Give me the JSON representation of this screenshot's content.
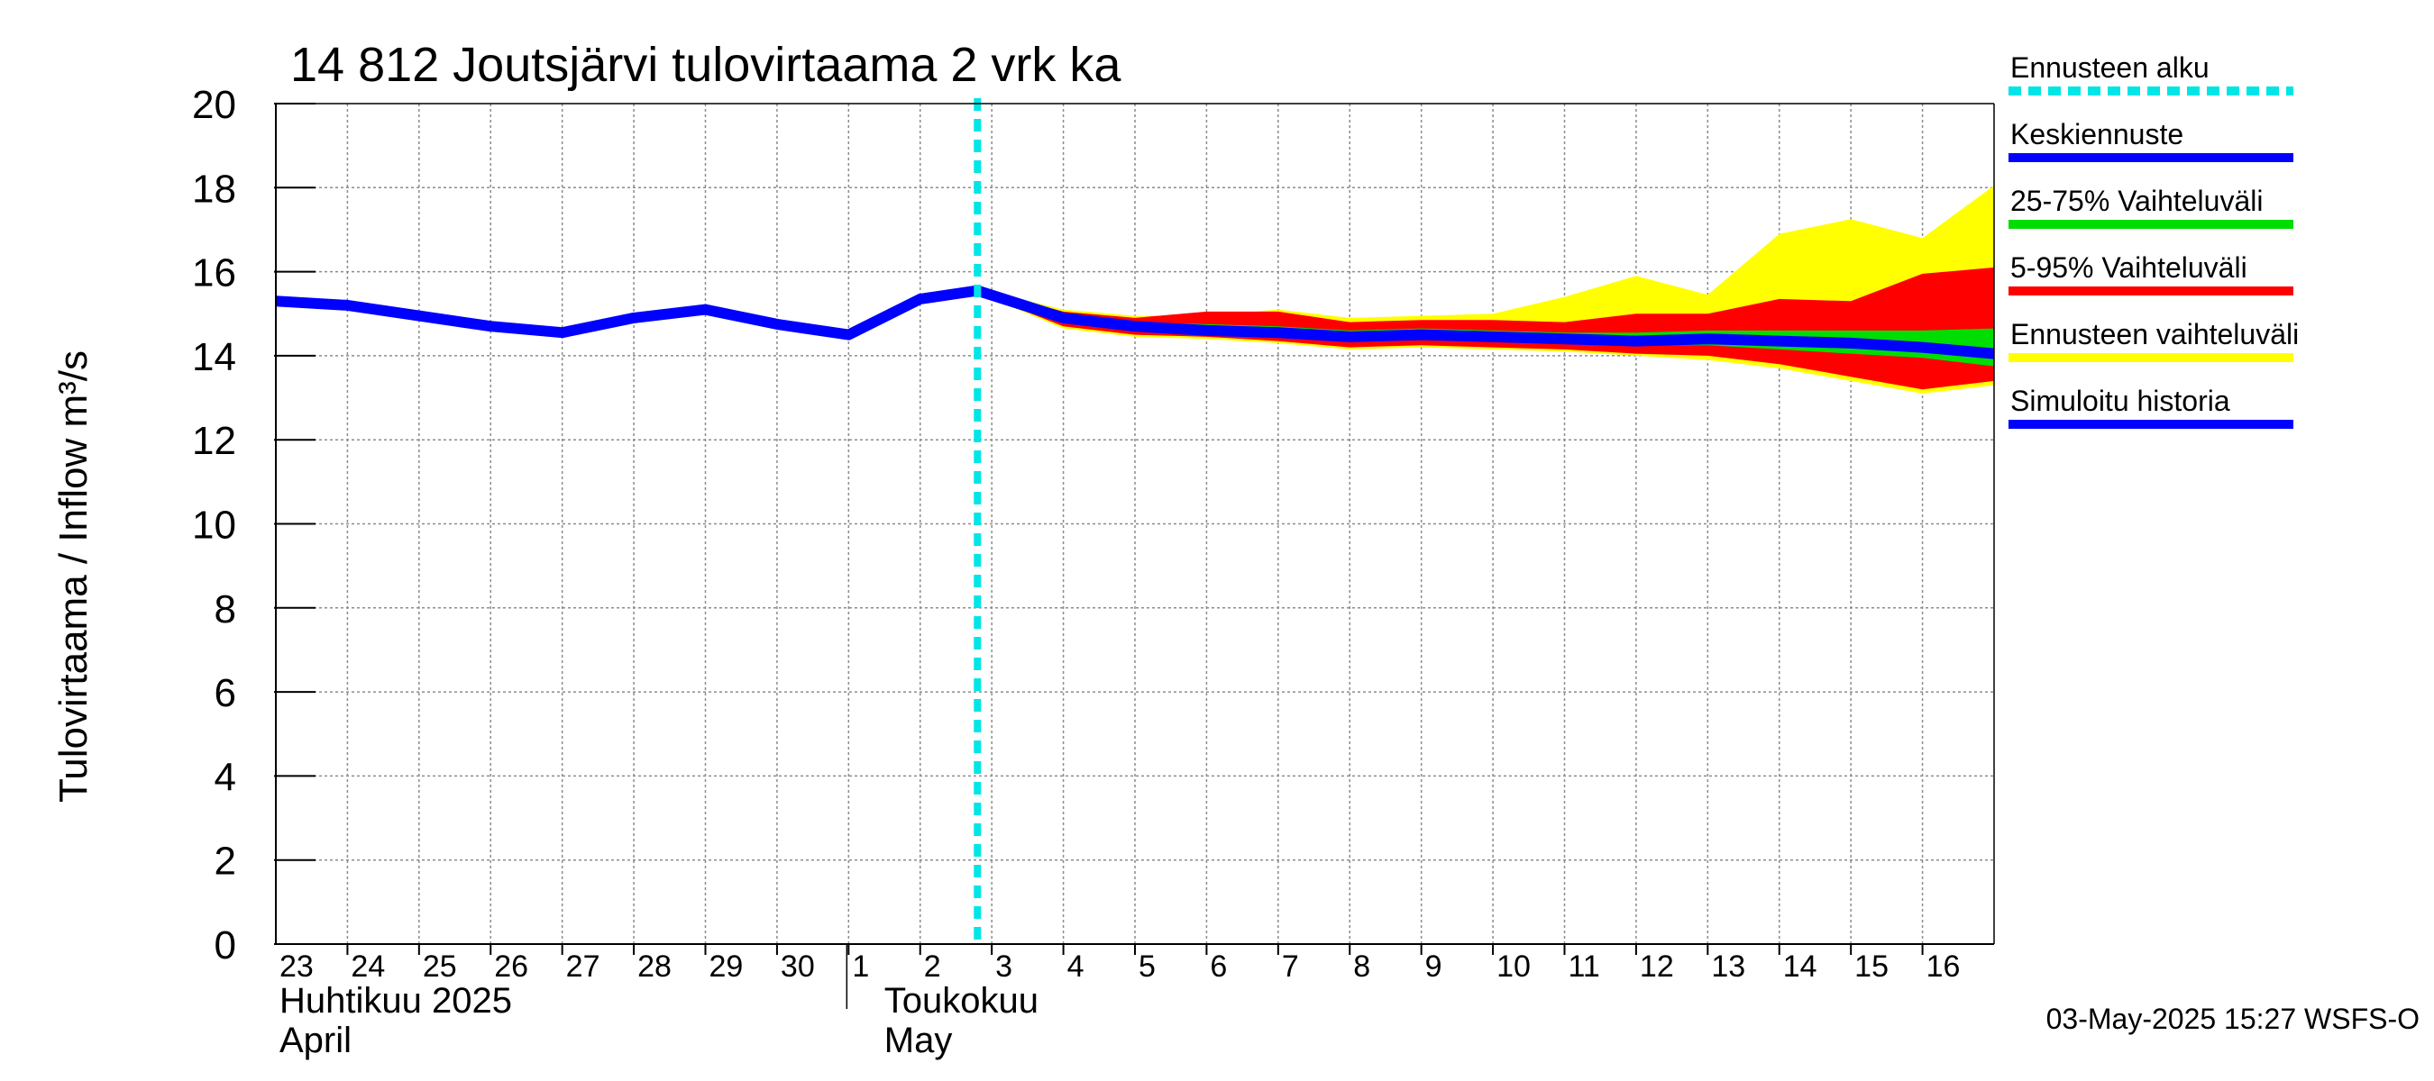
{
  "chart_data": {
    "type": "area",
    "title": "14 812 Joutsjärvi tulovirtaama 2 vrk ka",
    "ylabel": "Tulovirtaama / Inflow    m³/s",
    "ylim": [
      0,
      20
    ],
    "yticks": [
      "0",
      "2",
      "4",
      "6",
      "8",
      "10",
      "12",
      "14",
      "16",
      "18",
      "20"
    ],
    "x_start_day": 23,
    "x_end_day": 47,
    "xtick_labels": [
      "23",
      "24",
      "25",
      "26",
      "27",
      "28",
      "29",
      "30",
      "1",
      "2",
      "3",
      "4",
      "5",
      "6",
      "7",
      "8",
      "9",
      "10",
      "11",
      "12",
      "13",
      "14",
      "15",
      "16"
    ],
    "month_labels": [
      {
        "line1": "Huhtikuu  2025",
        "line2": "April"
      },
      {
        "line1": "Toukokuu",
        "line2": "May"
      }
    ],
    "grid": true,
    "forecast_start_day": 32.8,
    "series": [
      {
        "name": "Simuloitu historia",
        "x": [
          23,
          24,
          25,
          26,
          27,
          28,
          29,
          30,
          31,
          32,
          32.8
        ],
        "values": [
          15.3,
          15.2,
          14.95,
          14.7,
          14.55,
          14.9,
          15.1,
          14.75,
          14.5,
          15.35,
          15.55
        ]
      },
      {
        "name": "Keskiennuste",
        "x": [
          32.8,
          34,
          35,
          36,
          37,
          38,
          39,
          40,
          41,
          42,
          43,
          44,
          45,
          46,
          47
        ],
        "values": [
          15.55,
          14.9,
          14.7,
          14.6,
          14.55,
          14.45,
          14.5,
          14.45,
          14.4,
          14.35,
          14.4,
          14.35,
          14.3,
          14.2,
          14.05
        ]
      }
    ],
    "bands": [
      {
        "name": "Ennusteen vaihteluväli",
        "x": [
          32.8,
          34,
          35,
          36,
          37,
          38,
          39,
          40,
          41,
          42,
          43,
          44,
          45,
          46,
          47
        ],
        "lower": [
          15.5,
          14.65,
          14.45,
          14.4,
          14.3,
          14.15,
          14.2,
          14.15,
          14.1,
          14.0,
          13.9,
          13.7,
          13.4,
          13.1,
          13.3
        ],
        "upper": [
          15.6,
          15.1,
          14.95,
          14.95,
          15.1,
          14.9,
          14.95,
          15.0,
          15.4,
          15.9,
          15.45,
          16.9,
          17.25,
          16.8,
          18.05
        ]
      },
      {
        "name": "5-95% Vaihteluväli",
        "x": [
          32.8,
          34,
          35,
          36,
          37,
          38,
          39,
          40,
          41,
          42,
          43,
          44,
          45,
          46,
          47
        ],
        "lower": [
          15.5,
          14.7,
          14.5,
          14.45,
          14.35,
          14.2,
          14.25,
          14.2,
          14.15,
          14.05,
          14.0,
          13.8,
          13.5,
          13.2,
          13.4
        ],
        "upper": [
          15.6,
          15.05,
          14.9,
          15.05,
          15.05,
          14.8,
          14.85,
          14.85,
          14.8,
          15.0,
          15.0,
          15.35,
          15.3,
          15.95,
          16.1
        ]
      },
      {
        "name": "25-75% Vaihteluväli",
        "x": [
          32.8,
          34,
          35,
          36,
          37,
          38,
          39,
          40,
          41,
          42,
          43,
          44,
          45,
          46,
          47
        ],
        "lower": [
          15.52,
          14.8,
          14.6,
          14.5,
          14.45,
          14.35,
          14.4,
          14.35,
          14.3,
          14.25,
          14.25,
          14.15,
          14.05,
          13.95,
          13.75
        ],
        "upper": [
          15.58,
          14.98,
          14.8,
          14.75,
          14.7,
          14.6,
          14.65,
          14.6,
          14.55,
          14.55,
          14.6,
          14.6,
          14.6,
          14.6,
          14.65
        ]
      }
    ],
    "legend": [
      {
        "label": "Ennusteen alku",
        "color": "#00e5e5",
        "style": "dashed"
      },
      {
        "label": "Keskiennuste",
        "color": "#0000ff",
        "style": "solid"
      },
      {
        "label": "25-75% Vaihteluväli",
        "color": "#00dd00",
        "style": "solid"
      },
      {
        "label": "5-95% Vaihteluväli",
        "color": "#ff0000",
        "style": "solid"
      },
      {
        "label": "Ennusteen vaihteluväli",
        "color": "#ffff00",
        "style": "solid"
      },
      {
        "label": "Simuloitu historia",
        "color": "#0000ff",
        "style": "solid"
      }
    ],
    "legend_position": "right",
    "footer": "03-May-2025 15:27 WSFS-O"
  },
  "colors": {
    "history": "#0000ff",
    "mean": "#0000ff",
    "band_full": "#ffff00",
    "band_5_95": "#ff0000",
    "band_25_75": "#00dd00",
    "forecast_start": "#00e5e5"
  }
}
